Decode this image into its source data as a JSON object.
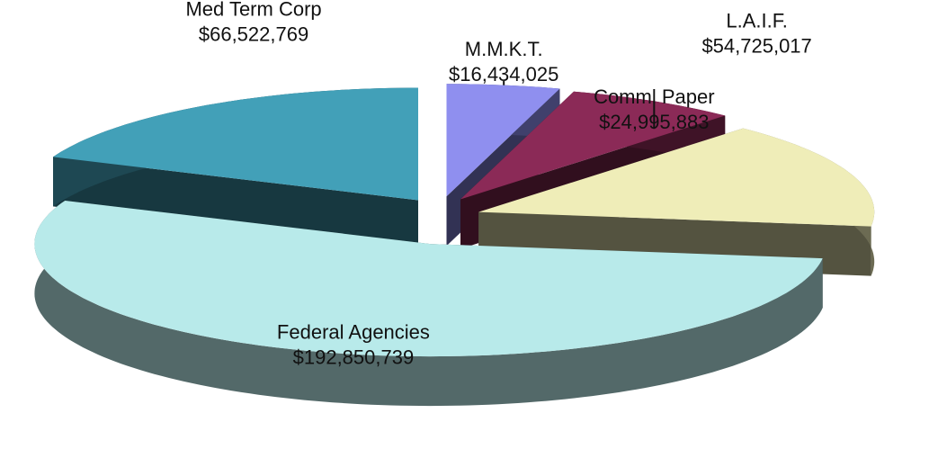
{
  "chart_data": {
    "type": "pie",
    "categories": [
      "M.M.K.T.",
      "Comml Paper",
      "L.A.I.F.",
      "Federal Agencies",
      "Med Term Corp"
    ],
    "values": [
      16434025,
      24995883,
      54725017,
      192850739,
      66522769
    ],
    "value_labels": [
      "$16,434,025",
      "$24,995,883",
      "$54,725,017",
      "$192,850,739",
      "$66,522,769"
    ],
    "colors": [
      "#8f8fef",
      "#8b2a57",
      "#efedb8",
      "#b8eaea",
      "#42a0b8"
    ]
  }
}
